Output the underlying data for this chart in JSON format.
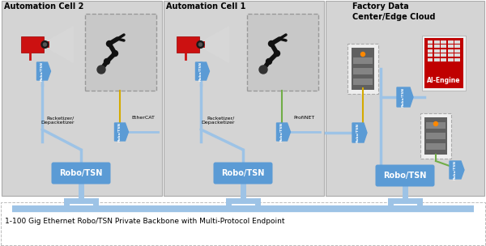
{
  "bg_white": "#ffffff",
  "bg_panel": "#d4d4d4",
  "blue_tsn": "#5b9bd5",
  "blue_light": "#9dc3e6",
  "red_cam": "#cc1111",
  "dark": "#111111",
  "yellow": "#d4aa00",
  "green": "#70ad47",
  "ai_red": "#c00000",
  "cell2_title": "Automation Cell 2",
  "cell1_title": "Automation Cell 1",
  "factory_title": "Factory Data\nCenter/Edge Cloud",
  "bottom_text": "1-100 Gig Ethernet Robo/TSN Private Backbone with Multi-Protocol Endpoint",
  "ethercat_label": "EtherCAT",
  "profinet_label": "ProfiNET",
  "pack_label": "Packetizer/\nDepacketizer",
  "robotsn_label": "Robo/TSN",
  "ai_label": "AI-Engine"
}
